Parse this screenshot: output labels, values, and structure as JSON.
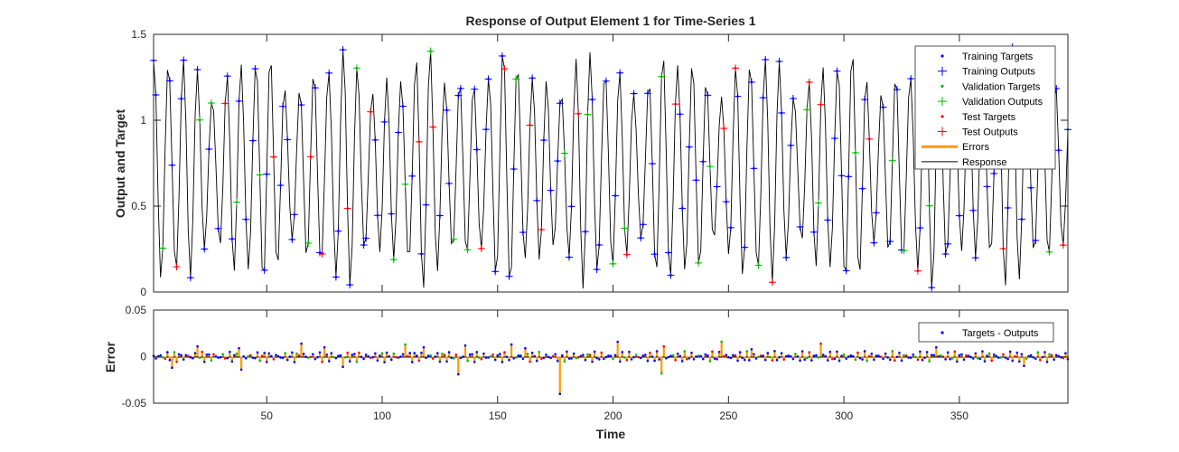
{
  "chart_data": [
    {
      "type": "line",
      "title": "Response of Output Element 1 for Time-Series 1",
      "xlabel": "",
      "ylabel": "Output and Target",
      "xlim": [
        1,
        397
      ],
      "ylim": [
        0,
        1.5
      ],
      "yticks": [
        "0",
        "0.5",
        "1",
        "1.5"
      ],
      "grid": false,
      "legend_position": "top-right",
      "legend": [
        {
          "label": "Training Targets",
          "marker": "dot",
          "color": "#0000ff"
        },
        {
          "label": "Training Outputs",
          "marker": "plus",
          "color": "#0000ff"
        },
        {
          "label": "Validation Targets",
          "marker": "dot",
          "color": "#00bb00"
        },
        {
          "label": "Validation Outputs",
          "marker": "plus",
          "color": "#00bb00"
        },
        {
          "label": "Test Targets",
          "marker": "dot",
          "color": "#ff0000"
        },
        {
          "label": "Test Outputs",
          "marker": "plus",
          "color": "#ff0000"
        },
        {
          "label": "Errors",
          "marker": "thick-line",
          "color": "#ff9900"
        },
        {
          "label": "Response",
          "marker": "line",
          "color": "#000000"
        }
      ],
      "series_pattern": {
        "note": "quasi-periodic oscillation, period about 6.3 samples, values between about 0.02 and 1.43",
        "samples": 397,
        "split_colors": {
          "training": "#0000ff",
          "validation": "#00bb00",
          "test": "#ff0000"
        }
      }
    },
    {
      "type": "line",
      "title": "",
      "xlabel": "Time",
      "ylabel": "Error",
      "xlim": [
        1,
        397
      ],
      "ylim": [
        -0.05,
        0.05
      ],
      "xticks": [
        "50",
        "100",
        "150",
        "200",
        "250",
        "300",
        "350"
      ],
      "yticks": [
        "-0.05",
        "0",
        "0.05"
      ],
      "legend_position": "top-right",
      "legend": [
        {
          "label": "Targets - Outputs",
          "marker": "dot",
          "color": "#0000ff"
        }
      ],
      "notable_errors": [
        {
          "x": 9,
          "y": -0.012
        },
        {
          "x": 20,
          "y": 0.011
        },
        {
          "x": 38,
          "y": 0.009
        },
        {
          "x": 39,
          "y": -0.014
        },
        {
          "x": 65,
          "y": 0.014
        },
        {
          "x": 75,
          "y": 0.01
        },
        {
          "x": 83,
          "y": -0.011
        },
        {
          "x": 110,
          "y": 0.013
        },
        {
          "x": 118,
          "y": 0.01
        },
        {
          "x": 133,
          "y": -0.019
        },
        {
          "x": 136,
          "y": 0.012
        },
        {
          "x": 156,
          "y": 0.013
        },
        {
          "x": 162,
          "y": 0.009
        },
        {
          "x": 177,
          "y": -0.04
        },
        {
          "x": 202,
          "y": 0.016
        },
        {
          "x": 221,
          "y": -0.018
        },
        {
          "x": 222,
          "y": 0.011
        },
        {
          "x": 247,
          "y": 0.016
        },
        {
          "x": 260,
          "y": 0.008
        },
        {
          "x": 290,
          "y": 0.014
        },
        {
          "x": 340,
          "y": 0.01
        },
        {
          "x": 378,
          "y": -0.01
        }
      ],
      "error_color": "#ff9900",
      "point_color": "#0000ff"
    }
  ]
}
